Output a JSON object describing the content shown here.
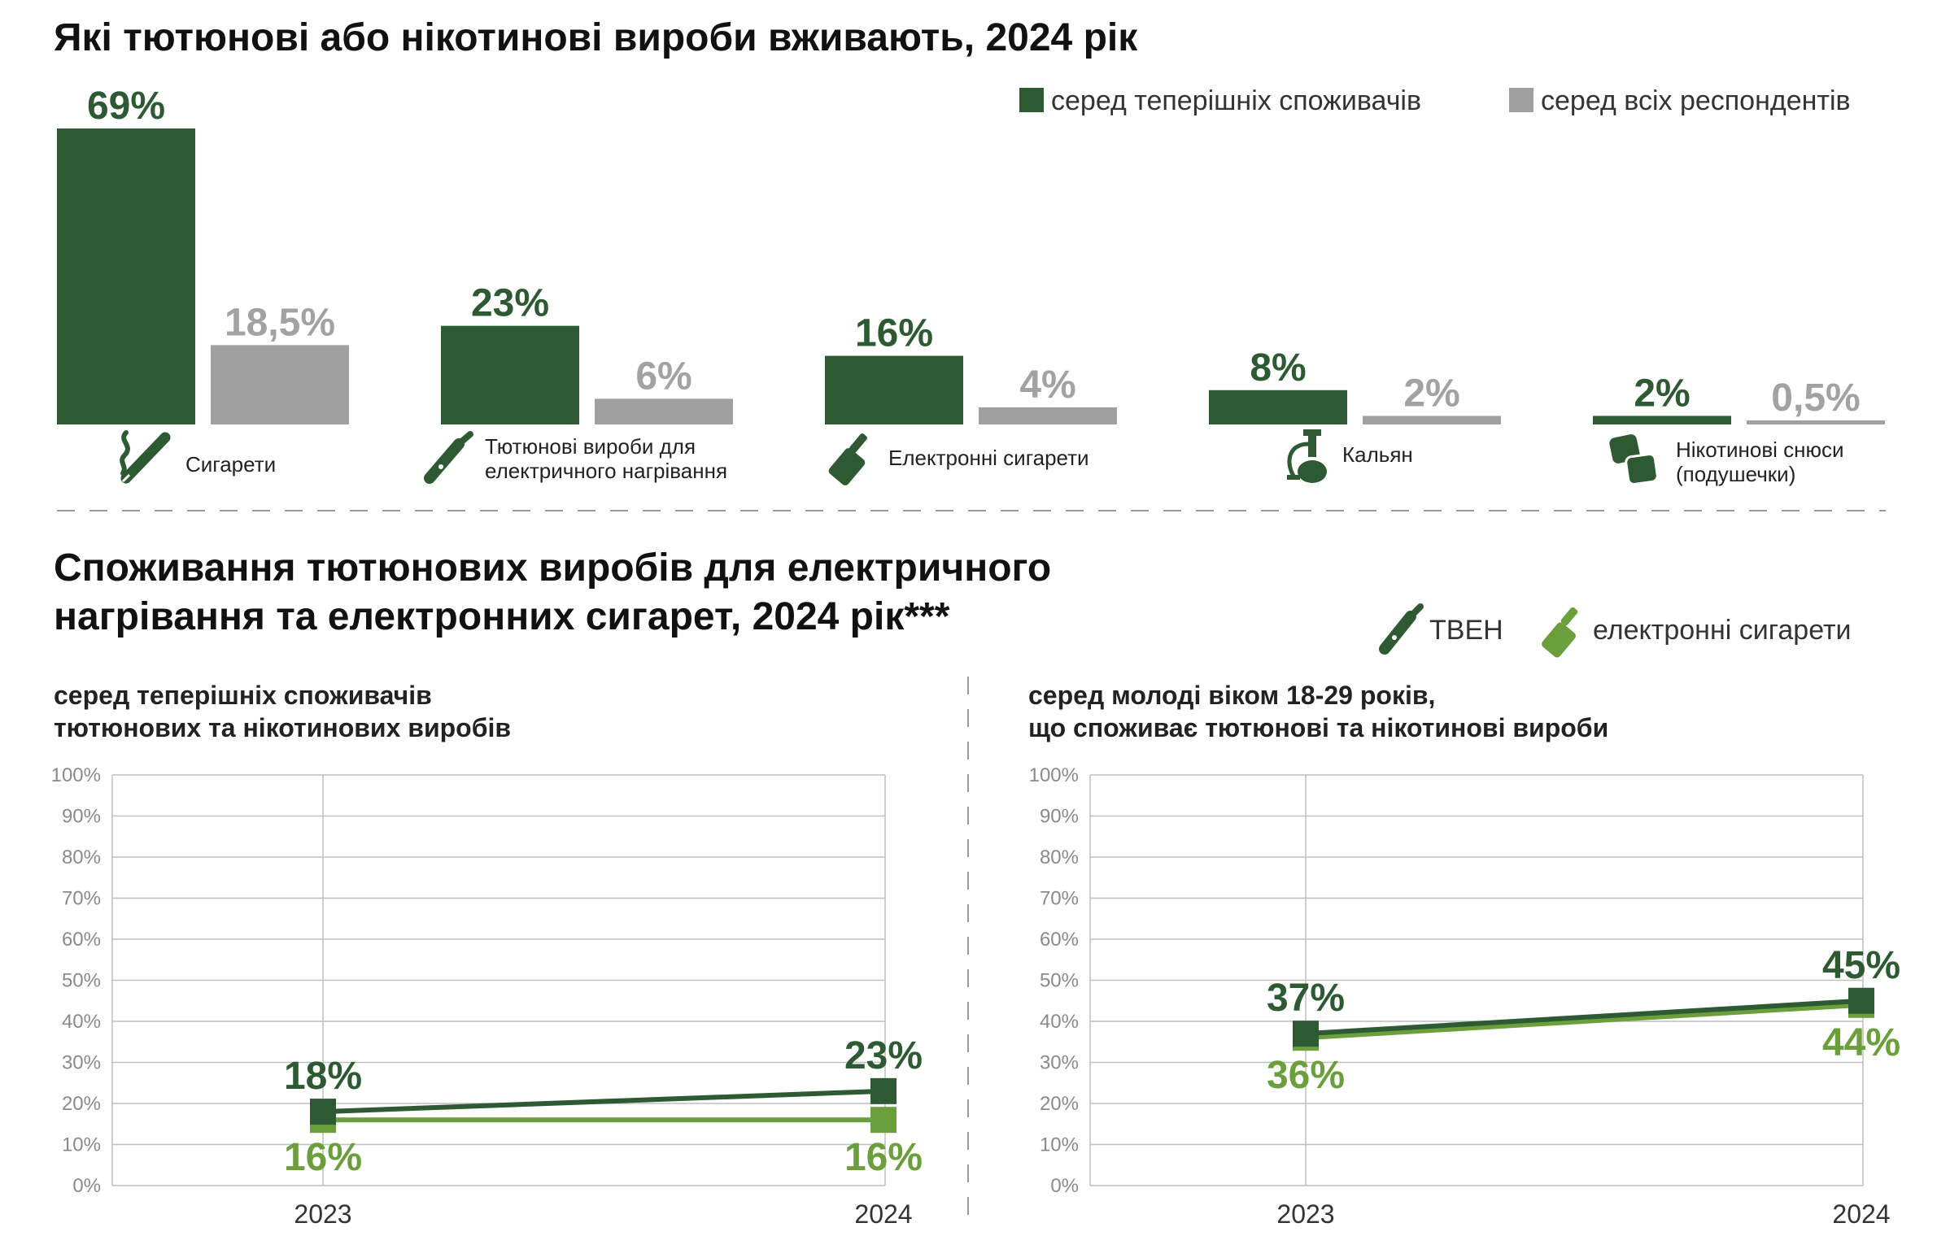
{
  "colors": {
    "dark_green": "#2d5a33",
    "light_green": "#6a9f3c",
    "grey": "#a0a0a0",
    "grid": "#bfbfbf"
  },
  "top_section": {
    "title": "Які тютюнові або нікотинові вироби вживають, 2024 рік"
  },
  "bottom_section": {
    "title_line1": "Споживання тютюнових виробів для електричного",
    "title_line2": "нагрівання та електронних сигарет, 2024 рік***",
    "left_panel": {
      "title_line1": "серед теперішніх споживачів",
      "title_line2": "тютюнових та нікотинових виробів"
    },
    "right_panel": {
      "title_line1": "серед молоді віком 18-29 років,",
      "title_line2": "що споживає тютюнові та нікотинові вироби"
    }
  },
  "chart_data": [
    {
      "type": "bar",
      "title": "Які тютюнові або нікотинові вироби вживають, 2024 рік",
      "categories": [
        {
          "line1": "Сигарети",
          "line2": "",
          "icon": "cigarette-icon"
        },
        {
          "line1": "Тютюнові вироби для",
          "line2": "електричного нагрівання",
          "icon": "heated-tobacco-icon"
        },
        {
          "line1": "Електронні сигарети",
          "line2": "",
          "icon": "vape-icon"
        },
        {
          "line1": "Кальян",
          "line2": "",
          "icon": "hookah-icon"
        },
        {
          "line1": "Нікотинові снюси",
          "line2": "(подушечки)",
          "icon": "snus-pouch-icon"
        }
      ],
      "series": [
        {
          "name": "серед теперішніх споживачів",
          "values": [
            69,
            23,
            16,
            8,
            2
          ],
          "labels": [
            "69%",
            "23%",
            "16%",
            "8%",
            "2%"
          ],
          "color": "#2d5a33"
        },
        {
          "name": "серед всіх респондентів",
          "values": [
            18.5,
            6,
            4,
            2,
            0.5
          ],
          "labels": [
            "18,5%",
            "6%",
            "4%",
            "2%",
            "0,5%"
          ],
          "color": "#a0a0a0"
        }
      ],
      "ylim": [
        0,
        69
      ],
      "legend": "top-right"
    },
    {
      "type": "line",
      "title": "серед теперішніх споживачів тютюнових та нікотинових виробів",
      "x": [
        "2023",
        "2024"
      ],
      "series": [
        {
          "name": "ТВЕН",
          "values": [
            18,
            23
          ],
          "labels": [
            "18%",
            "23%"
          ],
          "color": "#2d5a33",
          "icon": "heated-tobacco-icon"
        },
        {
          "name": "електронні сигарети",
          "values": [
            16,
            16
          ],
          "labels": [
            "16%",
            "16%"
          ],
          "color": "#6a9f3c",
          "icon": "vape-icon"
        }
      ],
      "yticks": [
        "0%",
        "10%",
        "20%",
        "30%",
        "40%",
        "50%",
        "60%",
        "70%",
        "80%",
        "90%",
        "100%"
      ],
      "ylim": [
        0,
        100
      ],
      "grid": true,
      "legend": "top-right"
    },
    {
      "type": "line",
      "title": "серед молоді віком 18-29 років, що споживає тютюнові та нікотинові вироби",
      "x": [
        "2023",
        "2024"
      ],
      "series": [
        {
          "name": "ТВЕН",
          "values": [
            37,
            45
          ],
          "labels": [
            "37%",
            "45%"
          ],
          "color": "#2d5a33"
        },
        {
          "name": "електронні сигарети",
          "values": [
            36,
            44
          ],
          "labels": [
            "36%",
            "44%"
          ],
          "color": "#6a9f3c"
        }
      ],
      "yticks": [
        "0%",
        "10%",
        "20%",
        "30%",
        "40%",
        "50%",
        "60%",
        "70%",
        "80%",
        "90%",
        "100%"
      ],
      "ylim": [
        0,
        100
      ],
      "grid": true
    }
  ]
}
